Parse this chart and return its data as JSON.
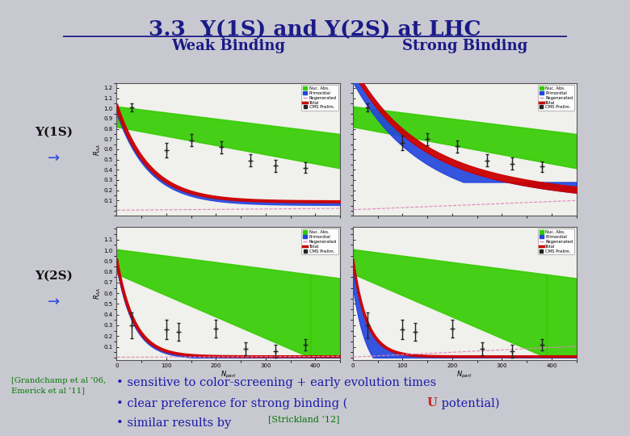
{
  "title": "3.3  Υ(1S) and Υ(2S) at LHC",
  "weak_binding_label": "Weak Binding",
  "strong_binding_label": "Strong Binding",
  "upsilon1s_label": "Υ(1S)",
  "upsilon2s_label": "Υ(2S)",
  "arrow": "→",
  "ref_label": "[Grandchamp et al ’06,\nEmerick et al ’11]",
  "bullet1": "• sensitive to color-screening + early evolution times",
  "bullet2_pre": "• clear preference for strong binding (",
  "bullet2_U": "U",
  "bullet2_post": " potential)",
  "bullet3_pre": "• similar results by  ",
  "bullet3_ref": "[Strickland ’12]",
  "bg_color": "#c8c8d0",
  "plot_bg": "#f0f0ec",
  "title_color": "#1a1a88",
  "header_color": "#1a1a88",
  "ref_color": "#007700",
  "bullet_color": "#1a1aaa",
  "U_color": "#cc2222",
  "strickland_color": "#007700",
  "green_fill": "#33cc00",
  "blue_fill": "#2244dd",
  "red_line": "#cc0000",
  "pink_line": "#dd88bb",
  "data_color": "#222222",
  "white_bg": "#ffffff",
  "panel_border": "#888888",
  "1S_weak_data_npart": [
    30,
    100,
    150,
    210,
    270,
    320,
    380
  ],
  "1S_weak_data_raa": [
    1.01,
    0.59,
    0.69,
    0.62,
    0.49,
    0.44,
    0.42
  ],
  "1S_weak_data_err": [
    0.04,
    0.07,
    0.06,
    0.06,
    0.06,
    0.06,
    0.05
  ],
  "1S_strong_data_npart": [
    30,
    100,
    150,
    210,
    270,
    320,
    380
  ],
  "1S_strong_data_raa": [
    1.01,
    0.66,
    0.7,
    0.63,
    0.49,
    0.46,
    0.43
  ],
  "1S_strong_data_err": [
    0.04,
    0.07,
    0.06,
    0.06,
    0.06,
    0.06,
    0.05
  ],
  "2S_weak_data_npart": [
    30,
    100,
    125,
    200,
    260,
    320,
    380
  ],
  "2S_weak_data_raa": [
    0.3,
    0.26,
    0.24,
    0.27,
    0.08,
    0.06,
    0.12
  ],
  "2S_weak_data_err": [
    0.12,
    0.09,
    0.08,
    0.08,
    0.06,
    0.06,
    0.05
  ],
  "2S_strong_data_npart": [
    30,
    100,
    125,
    200,
    260,
    320,
    380
  ],
  "2S_strong_data_raa": [
    0.3,
    0.26,
    0.24,
    0.27,
    0.08,
    0.06,
    0.12
  ],
  "2S_strong_data_err": [
    0.12,
    0.09,
    0.08,
    0.08,
    0.06,
    0.06,
    0.05
  ]
}
